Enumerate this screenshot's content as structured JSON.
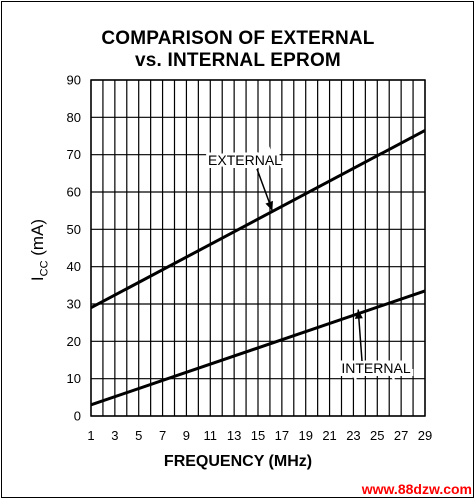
{
  "chart_data": {
    "type": "line",
    "title": "COMPARISON OF EXTERNAL",
    "subtitle": "vs. INTERNAL EPROM",
    "xlabel": "FREQUENCY (MHz)",
    "ylabel_main": "I",
    "ylabel_sub": "CC",
    "ylabel_rest": " (mA)",
    "xlim": [
      1,
      29
    ],
    "ylim": [
      0,
      90
    ],
    "xticks": [
      1,
      3,
      5,
      7,
      9,
      11,
      13,
      15,
      17,
      19,
      21,
      23,
      25,
      27,
      29
    ],
    "yticks": [
      0,
      10,
      20,
      30,
      40,
      50,
      60,
      70,
      80,
      90
    ],
    "grid": true,
    "series": [
      {
        "name": "EXTERNAL",
        "x": [
          1,
          29
        ],
        "y": [
          29,
          76.5
        ]
      },
      {
        "name": "INTERNAL",
        "x": [
          1,
          29
        ],
        "y": [
          3,
          33.5
        ]
      }
    ],
    "annotations": [
      {
        "text": "EXTERNAL",
        "points_to_x": 16.2,
        "points_to_y": 55
      },
      {
        "text": "INTERNAL",
        "points_to_x": 23.4,
        "points_to_y": 28.5
      }
    ]
  },
  "watermark": "www.88dzw.com"
}
